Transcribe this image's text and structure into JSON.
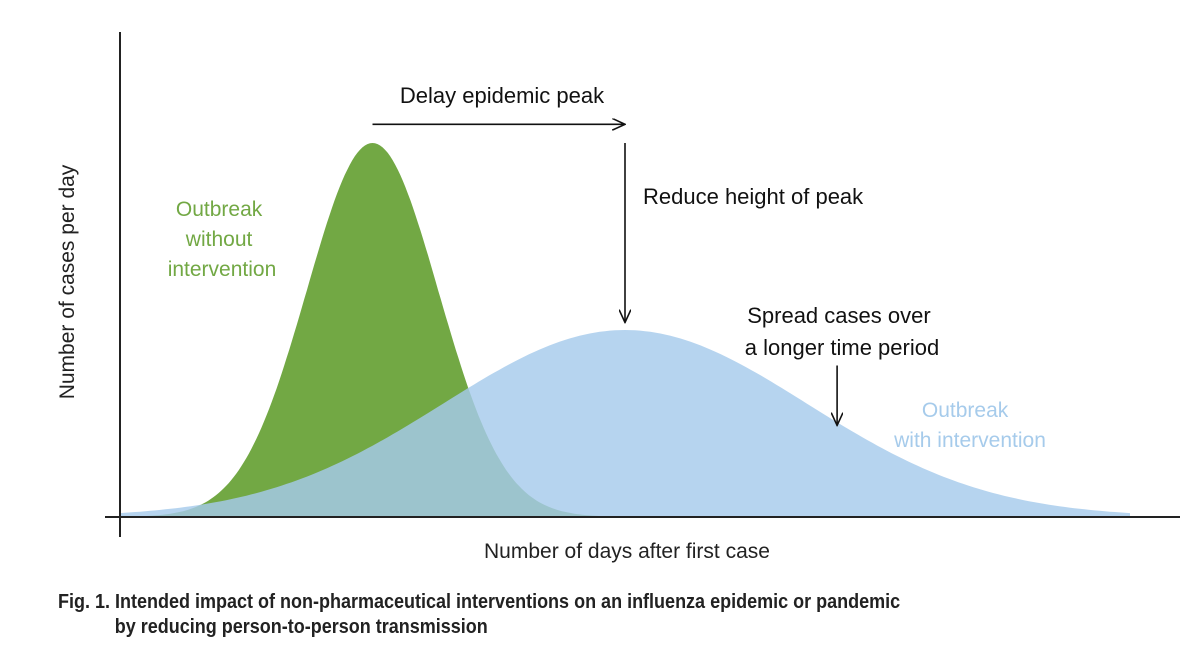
{
  "chart_data": {
    "type": "area",
    "xlabel": "Number of days after first case",
    "ylabel": "Number of cases per day",
    "xlim": [
      0,
      100
    ],
    "ylim": [
      0,
      100
    ],
    "grid": false,
    "ticks": false,
    "series": [
      {
        "name": "Outbreak without intervention",
        "label_lines": [
          "Outbreak",
          "without",
          "intervention"
        ],
        "color": "#72a844",
        "peak_x": 25,
        "peak_y": 100,
        "spread": 6.5,
        "x_start": 0,
        "x_end": 50
      },
      {
        "name": "Outbreak with intervention",
        "label_lines": [
          "Outbreak",
          "with intervention"
        ],
        "color": "#a6cbeb",
        "peak_x": 50,
        "peak_y": 50,
        "spread": 18,
        "x_start": 0,
        "x_end": 100
      }
    ],
    "annotations": [
      {
        "name": "delay-peak",
        "text": "Delay epidemic peak",
        "arrow_from": [
          25,
          105
        ],
        "arrow_to": [
          50,
          105
        ]
      },
      {
        "name": "reduce-height",
        "text": "Reduce height of peak",
        "arrow_from": [
          50,
          100
        ],
        "arrow_to": [
          50,
          52
        ]
      },
      {
        "name": "spread-cases",
        "text_lines": [
          "Spread cases over",
          "a longer time period"
        ],
        "arrow_from": [
          71,
          40.5
        ],
        "arrow_to": [
          71,
          24.5
        ]
      }
    ]
  },
  "caption": {
    "line1": "Fig. 1. Intended impact of non-pharmaceutical interventions on an influenza epidemic or pandemic",
    "line2": "by reducing person-to-person transmission"
  }
}
